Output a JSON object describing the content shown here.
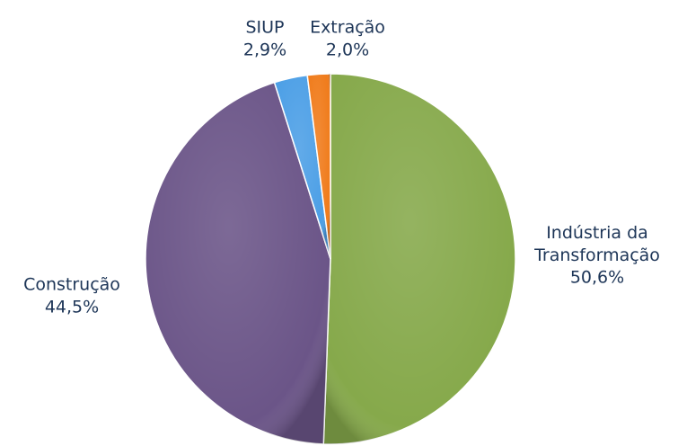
{
  "chart_data": {
    "type": "pie",
    "categories": [
      "Indústria da Transformação",
      "Construção",
      "SIUP",
      "Extração"
    ],
    "values": [
      50.6,
      44.5,
      2.9,
      2.0
    ],
    "value_labels": [
      "50,6%",
      "44,5%",
      "2,9%",
      "2,0%"
    ],
    "colors": [
      "#86a94b",
      "#6b5588",
      "#4c9fe6",
      "#f07c1c"
    ]
  }
}
